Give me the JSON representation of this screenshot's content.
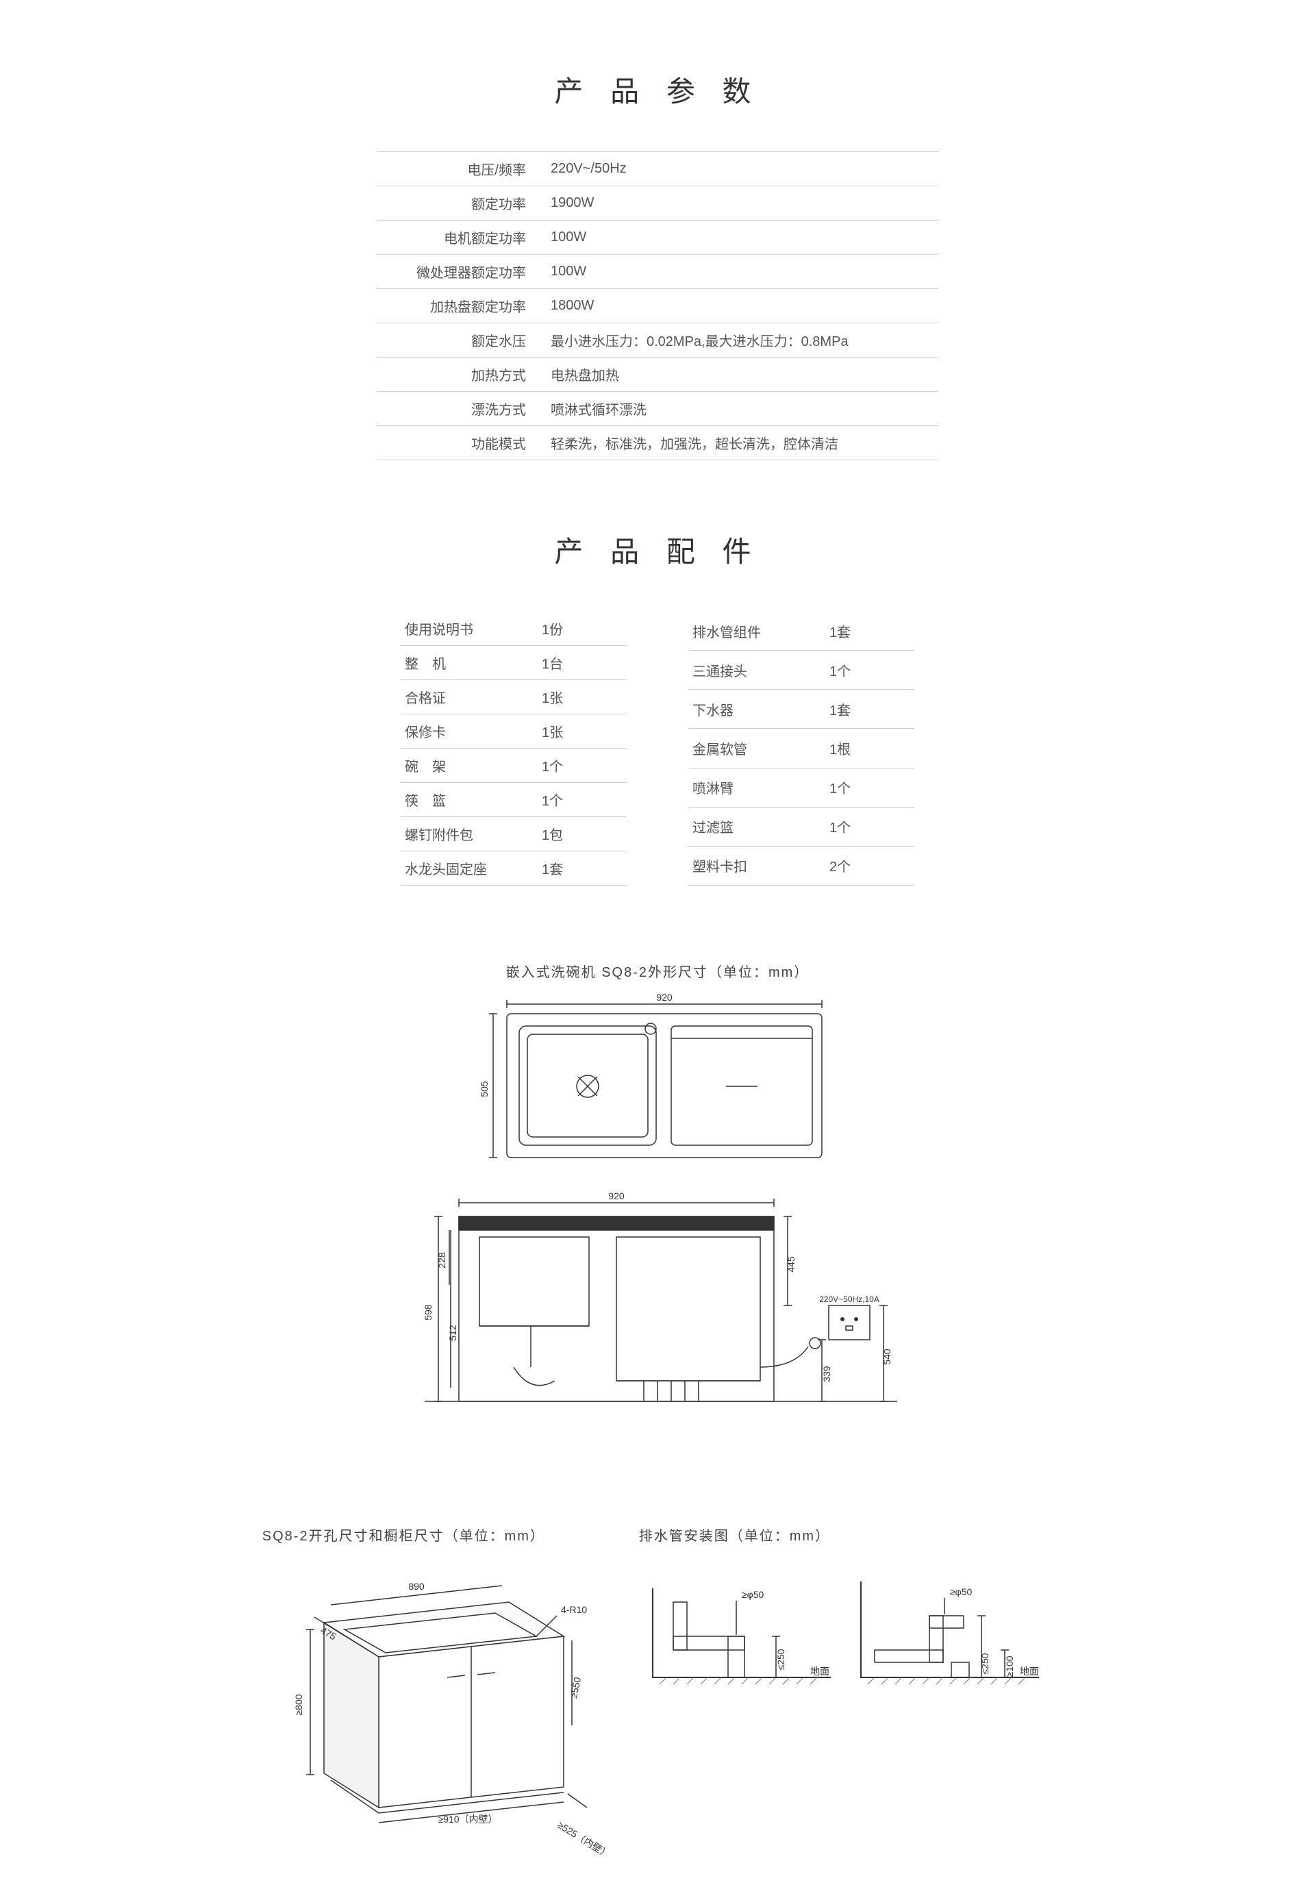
{
  "titles": {
    "specs": "产 品 参 数",
    "accessories": "产 品 配 件",
    "outline_dims": "嵌入式洗碗机 SQ8-2外形尺寸（单位：mm）",
    "cabinet_dims": "SQ8-2开孔尺寸和橱柜尺寸（单位：mm）",
    "drain_install": "排水管安装图（单位：mm）"
  },
  "specs": [
    {
      "label": "电压/频率",
      "value": "220V~/50Hz"
    },
    {
      "label": "额定功率",
      "value": "1900W"
    },
    {
      "label": "电机额定功率",
      "value": "100W"
    },
    {
      "label": "微处理器额定功率",
      "value": "100W"
    },
    {
      "label": "加热盘额定功率",
      "value": "1800W"
    },
    {
      "label": "额定水压",
      "value": "最小进水压力：0.02MPa,最大进水压力：0.8MPa"
    },
    {
      "label": "加热方式",
      "value": "电热盘加热"
    },
    {
      "label": "漂洗方式",
      "value": "喷淋式循环漂洗"
    },
    {
      "label": "功能模式",
      "value": "轻柔洗，标准洗，加强洗，超长清洗，腔体清洁"
    }
  ],
  "accessories_left": [
    {
      "name": "使用说明书",
      "qty": "1份"
    },
    {
      "name": "整　机",
      "qty": "1台"
    },
    {
      "name": "合格证",
      "qty": "1张"
    },
    {
      "name": "保修卡",
      "qty": "1张"
    },
    {
      "name": "碗　架",
      "qty": "1个"
    },
    {
      "name": "筷　篮",
      "qty": "1个"
    },
    {
      "name": "螺钉附件包",
      "qty": "1包"
    },
    {
      "name": "水龙头固定座",
      "qty": "1套"
    }
  ],
  "accessories_right": [
    {
      "name": "排水管组件",
      "qty": "1套"
    },
    {
      "name": "三通接头",
      "qty": "1个"
    },
    {
      "name": "下水器",
      "qty": "1套"
    },
    {
      "name": "金属软管",
      "qty": "1根"
    },
    {
      "name": "喷淋臂",
      "qty": "1个"
    },
    {
      "name": "过滤篮",
      "qty": "1个"
    },
    {
      "name": "塑料卡扣",
      "qty": "2个"
    }
  ],
  "diagram_top": {
    "width_label": "920",
    "height_label": "505"
  },
  "diagram_front": {
    "width_label": "920",
    "right_height": "445",
    "inner_228": "228",
    "left_598": "598",
    "inner_512": "512",
    "outlet_339": "339",
    "outlet_540": "540",
    "socket_text": "220V~50Hz,10A"
  },
  "diagram_cabinet": {
    "top_890": "890",
    "depth_475": "475",
    "corner_r": "4-R10",
    "side_550": "≥550",
    "height_800": "≥800",
    "inner_910": "≥910（内壁）",
    "inner_525": "≥525（内壁）"
  },
  "diagram_drain": {
    "pipe_dia": "≥φ50",
    "h_250": "≤250",
    "ground": "地面",
    "h_100": "≥100"
  },
  "style": {
    "line_color": "#333333",
    "line_width": 1.5,
    "fill_grey": "#f0f0f0",
    "fill_light": "#fafafa"
  }
}
